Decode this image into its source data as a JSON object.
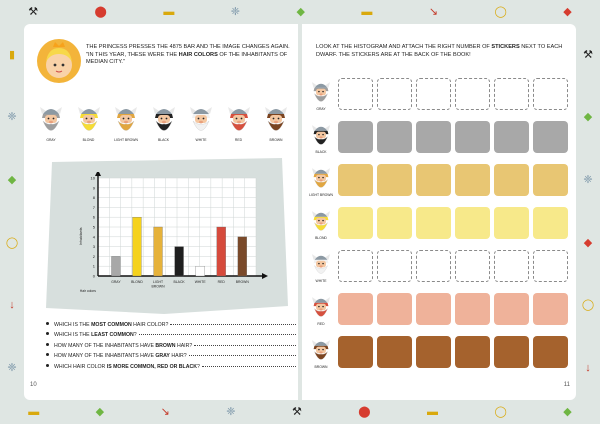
{
  "left_page": {
    "page_number": "10",
    "intro": {
      "part1": "The princess presses the 4875 bar and the image changes again. \"In this year, these were the ",
      "bold": "hair colors",
      "part2": " of the inhabitants of Median City.\""
    },
    "dwarfs": [
      {
        "label": "Gray",
        "beard": "#9e9e9e",
        "hair": "#9e9e9e"
      },
      {
        "label": "Blond",
        "beard": "#f6dc34",
        "hair": "#f6dc34"
      },
      {
        "label": "Light brown",
        "beard": "#e1a640",
        "hair": "#e1a640"
      },
      {
        "label": "Black",
        "beard": "#222222",
        "hair": "#222222"
      },
      {
        "label": "White",
        "beard": "#f2f2f2",
        "hair": "#f2f2f2"
      },
      {
        "label": "Red",
        "beard": "#d6503e",
        "hair": "#d6503e"
      },
      {
        "label": "Brown",
        "beard": "#7b4420",
        "hair": "#7b4420"
      }
    ],
    "questions": [
      {
        "pre": "Which is the ",
        "bold": "most common",
        "post": " hair color?"
      },
      {
        "pre": "Which is the ",
        "bold": "least common",
        "post": "?"
      },
      {
        "pre": "How many of the inhabitants have ",
        "bold": "brown",
        "post": " hair?"
      },
      {
        "pre": "How many of the inhabitants have ",
        "bold": "gray",
        "post": " hair?"
      },
      {
        "pre": "Which hair color ",
        "bold": "is more common, red or black",
        "post": "?"
      }
    ]
  },
  "chart_data": {
    "type": "bar",
    "categories": [
      "Gray",
      "Blond",
      "Light brown",
      "Black",
      "White",
      "Red",
      "Brown"
    ],
    "values": [
      2,
      6,
      5,
      3,
      1,
      5,
      4
    ],
    "colors": [
      "#a8a8a8",
      "#f5d21c",
      "#e6b23a",
      "#1f1f1f",
      "#ffffff",
      "#d64a3c",
      "#7a4a2a"
    ],
    "ylabel": "Inhabitants",
    "xlabel": "Hair colors",
    "ylim": [
      0,
      10
    ],
    "yticks": [
      "0",
      "1",
      "2",
      "3",
      "4",
      "5",
      "6",
      "7",
      "8",
      "9",
      "10"
    ],
    "grid": true
  },
  "right_page": {
    "page_number": "11",
    "instruction": {
      "part1": "Look at the histogram and attach the right number of ",
      "bold": "stickers",
      "part2": " next to each dwarf. The stickers are at the back of the book!"
    },
    "rows": [
      {
        "label": "Gray",
        "color": "#ffffff",
        "filled": 0,
        "beard": "#9e9e9e"
      },
      {
        "label": "Black",
        "color": "#a8a8a8",
        "filled": 6,
        "beard": "#222222"
      },
      {
        "label": "Light brown",
        "color": "#e8c673",
        "filled": 6,
        "beard": "#e1a640"
      },
      {
        "label": "Blond",
        "color": "#f7e98a",
        "filled": 6,
        "beard": "#f6dc34"
      },
      {
        "label": "White",
        "color": "#ffffff",
        "filled": 0,
        "beard": "#f2f2f2"
      },
      {
        "label": "Red",
        "color": "#efb29a",
        "filled": 6,
        "beard": "#d6503e"
      },
      {
        "label": "Brown",
        "color": "#a5622d",
        "filled": 6,
        "beard": "#7b4420"
      }
    ]
  },
  "decorations": [
    "mushroom-icon",
    "gem-icon",
    "gold-cart-icon",
    "shovel-icon",
    "ring-icon",
    "pickaxe-icon",
    "coral-icon"
  ]
}
